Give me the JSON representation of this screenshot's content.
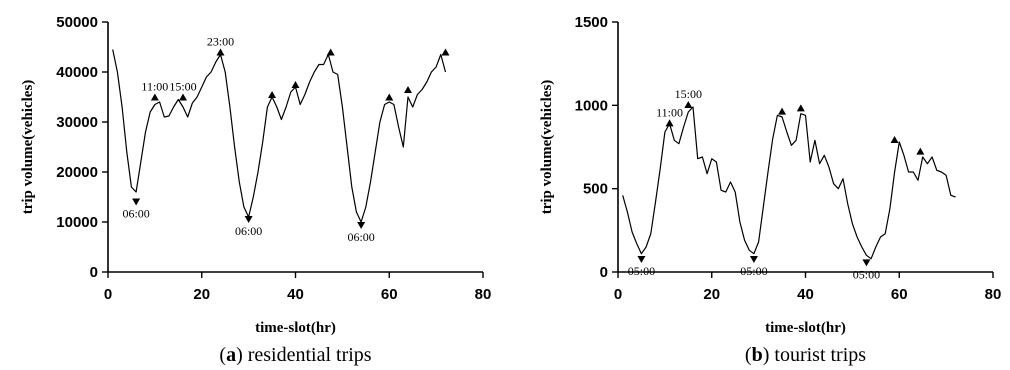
{
  "chart_data": [
    {
      "type": "line",
      "caption_letter": "a",
      "caption_text": "residential trips",
      "xlabel": "time-slot(hr)",
      "ylabel": "trip volume(vehicles)",
      "xlim": [
        0,
        80
      ],
      "ylim": [
        0,
        50000
      ],
      "xticks": [
        "0",
        "20",
        "40",
        "60",
        "80"
      ],
      "yticks": [
        "0",
        "10000",
        "20000",
        "30000",
        "40000",
        "50000"
      ],
      "grid": false,
      "series": [
        {
          "x": [
            1,
            2,
            3,
            4,
            5,
            6,
            7,
            8,
            9,
            10,
            11,
            12,
            13,
            14,
            15,
            16,
            17,
            18,
            19,
            20,
            21,
            22,
            23,
            24,
            25,
            26,
            27,
            28,
            29,
            30,
            31,
            32,
            33,
            34,
            35,
            36,
            37,
            38,
            39,
            40,
            41,
            42,
            43,
            44,
            45,
            46,
            47,
            48,
            49,
            50,
            51,
            52,
            53,
            54,
            55,
            56,
            57,
            58,
            59,
            60,
            61,
            62,
            63,
            64,
            65,
            66,
            67,
            68,
            69,
            70,
            71,
            72
          ],
          "y": [
            44500,
            40000,
            33000,
            24000,
            17000,
            16000,
            22000,
            28000,
            32000,
            33500,
            34000,
            31000,
            31200,
            33000,
            34500,
            33000,
            31000,
            33800,
            35000,
            37000,
            39000,
            40000,
            42000,
            43500,
            40000,
            33000,
            25000,
            18000,
            13000,
            11000,
            15000,
            20000,
            26000,
            33000,
            35000,
            33000,
            30500,
            33000,
            36000,
            37000,
            33500,
            35500,
            38000,
            40000,
            41500,
            41500,
            43500,
            40000,
            39500,
            33000,
            25000,
            17000,
            12000,
            10000,
            13000,
            18000,
            24000,
            30000,
            33500,
            34000,
            33500,
            29000,
            25000,
            35000,
            33000,
            35500,
            36500,
            38000,
            40000,
            41000,
            43500,
            40000
          ]
        }
      ],
      "annotations": [
        {
          "x": 10,
          "y": 34500,
          "dir": "up",
          "text": "11:00"
        },
        {
          "x": 16,
          "y": 34500,
          "dir": "up",
          "text": "15:00"
        },
        {
          "x": 24,
          "y": 43500,
          "dir": "up",
          "text": "23:00"
        },
        {
          "x": 6,
          "y": 14500,
          "dir": "down",
          "text": "06:00"
        },
        {
          "x": 30,
          "y": 11000,
          "dir": "down",
          "text": "06:00"
        },
        {
          "x": 54,
          "y": 9800,
          "dir": "down",
          "text": "06:00"
        },
        {
          "x": 35,
          "y": 35000,
          "dir": "up",
          "text": ""
        },
        {
          "x": 40,
          "y": 37000,
          "dir": "up",
          "text": ""
        },
        {
          "x": 47.5,
          "y": 43500,
          "dir": "up",
          "text": ""
        },
        {
          "x": 60,
          "y": 34500,
          "dir": "up",
          "text": ""
        },
        {
          "x": 64,
          "y": 36000,
          "dir": "up",
          "text": ""
        },
        {
          "x": 72,
          "y": 43500,
          "dir": "up",
          "text": ""
        }
      ]
    },
    {
      "type": "line",
      "caption_letter": "b",
      "caption_text": "tourist trips",
      "xlabel": "time-slot(hr)",
      "ylabel": "trip volume(vehicles)",
      "xlim": [
        0,
        80
      ],
      "ylim": [
        0,
        1500
      ],
      "xticks": [
        "0",
        "20",
        "40",
        "60",
        "80"
      ],
      "yticks": [
        "0",
        "500",
        "1000",
        "1500"
      ],
      "grid": false,
      "series": [
        {
          "x": [
            1,
            2,
            3,
            4,
            5,
            6,
            7,
            8,
            9,
            10,
            11,
            12,
            13,
            14,
            15,
            16,
            17,
            18,
            19,
            20,
            21,
            22,
            23,
            24,
            25,
            26,
            27,
            28,
            29,
            30,
            31,
            32,
            33,
            34,
            35,
            36,
            37,
            38,
            39,
            40,
            41,
            42,
            43,
            44,
            45,
            46,
            47,
            48,
            49,
            50,
            51,
            52,
            53,
            54,
            55,
            56,
            57,
            58,
            59,
            60,
            61,
            62,
            63,
            64,
            65,
            66,
            67,
            68,
            69,
            70,
            71,
            72
          ],
          "y": [
            460,
            360,
            240,
            170,
            110,
            150,
            230,
            420,
            620,
            840,
            890,
            790,
            770,
            870,
            960,
            990,
            680,
            690,
            590,
            680,
            660,
            490,
            480,
            540,
            480,
            300,
            190,
            130,
            110,
            180,
            390,
            600,
            800,
            940,
            930,
            840,
            760,
            790,
            950,
            940,
            660,
            790,
            650,
            700,
            630,
            530,
            500,
            560,
            410,
            290,
            210,
            150,
            100,
            80,
            150,
            210,
            230,
            380,
            600,
            780,
            700,
            600,
            600,
            550,
            690,
            650,
            690,
            610,
            600,
            580,
            460,
            450
          ]
        }
      ],
      "annotations": [
        {
          "x": 11,
          "y": 880,
          "dir": "up",
          "text": "11:00"
        },
        {
          "x": 15,
          "y": 990,
          "dir": "up",
          "text": "15:00"
        },
        {
          "x": 5,
          "y": 90,
          "dir": "down",
          "text": "05:00"
        },
        {
          "x": 29,
          "y": 90,
          "dir": "down",
          "text": "05:00"
        },
        {
          "x": 53,
          "y": 70,
          "dir": "down",
          "text": "05:00"
        },
        {
          "x": 35,
          "y": 950,
          "dir": "up",
          "text": ""
        },
        {
          "x": 39,
          "y": 970,
          "dir": "up",
          "text": ""
        },
        {
          "x": 59,
          "y": 780,
          "dir": "up",
          "text": ""
        },
        {
          "x": 64.5,
          "y": 710,
          "dir": "up",
          "text": ""
        }
      ]
    }
  ]
}
